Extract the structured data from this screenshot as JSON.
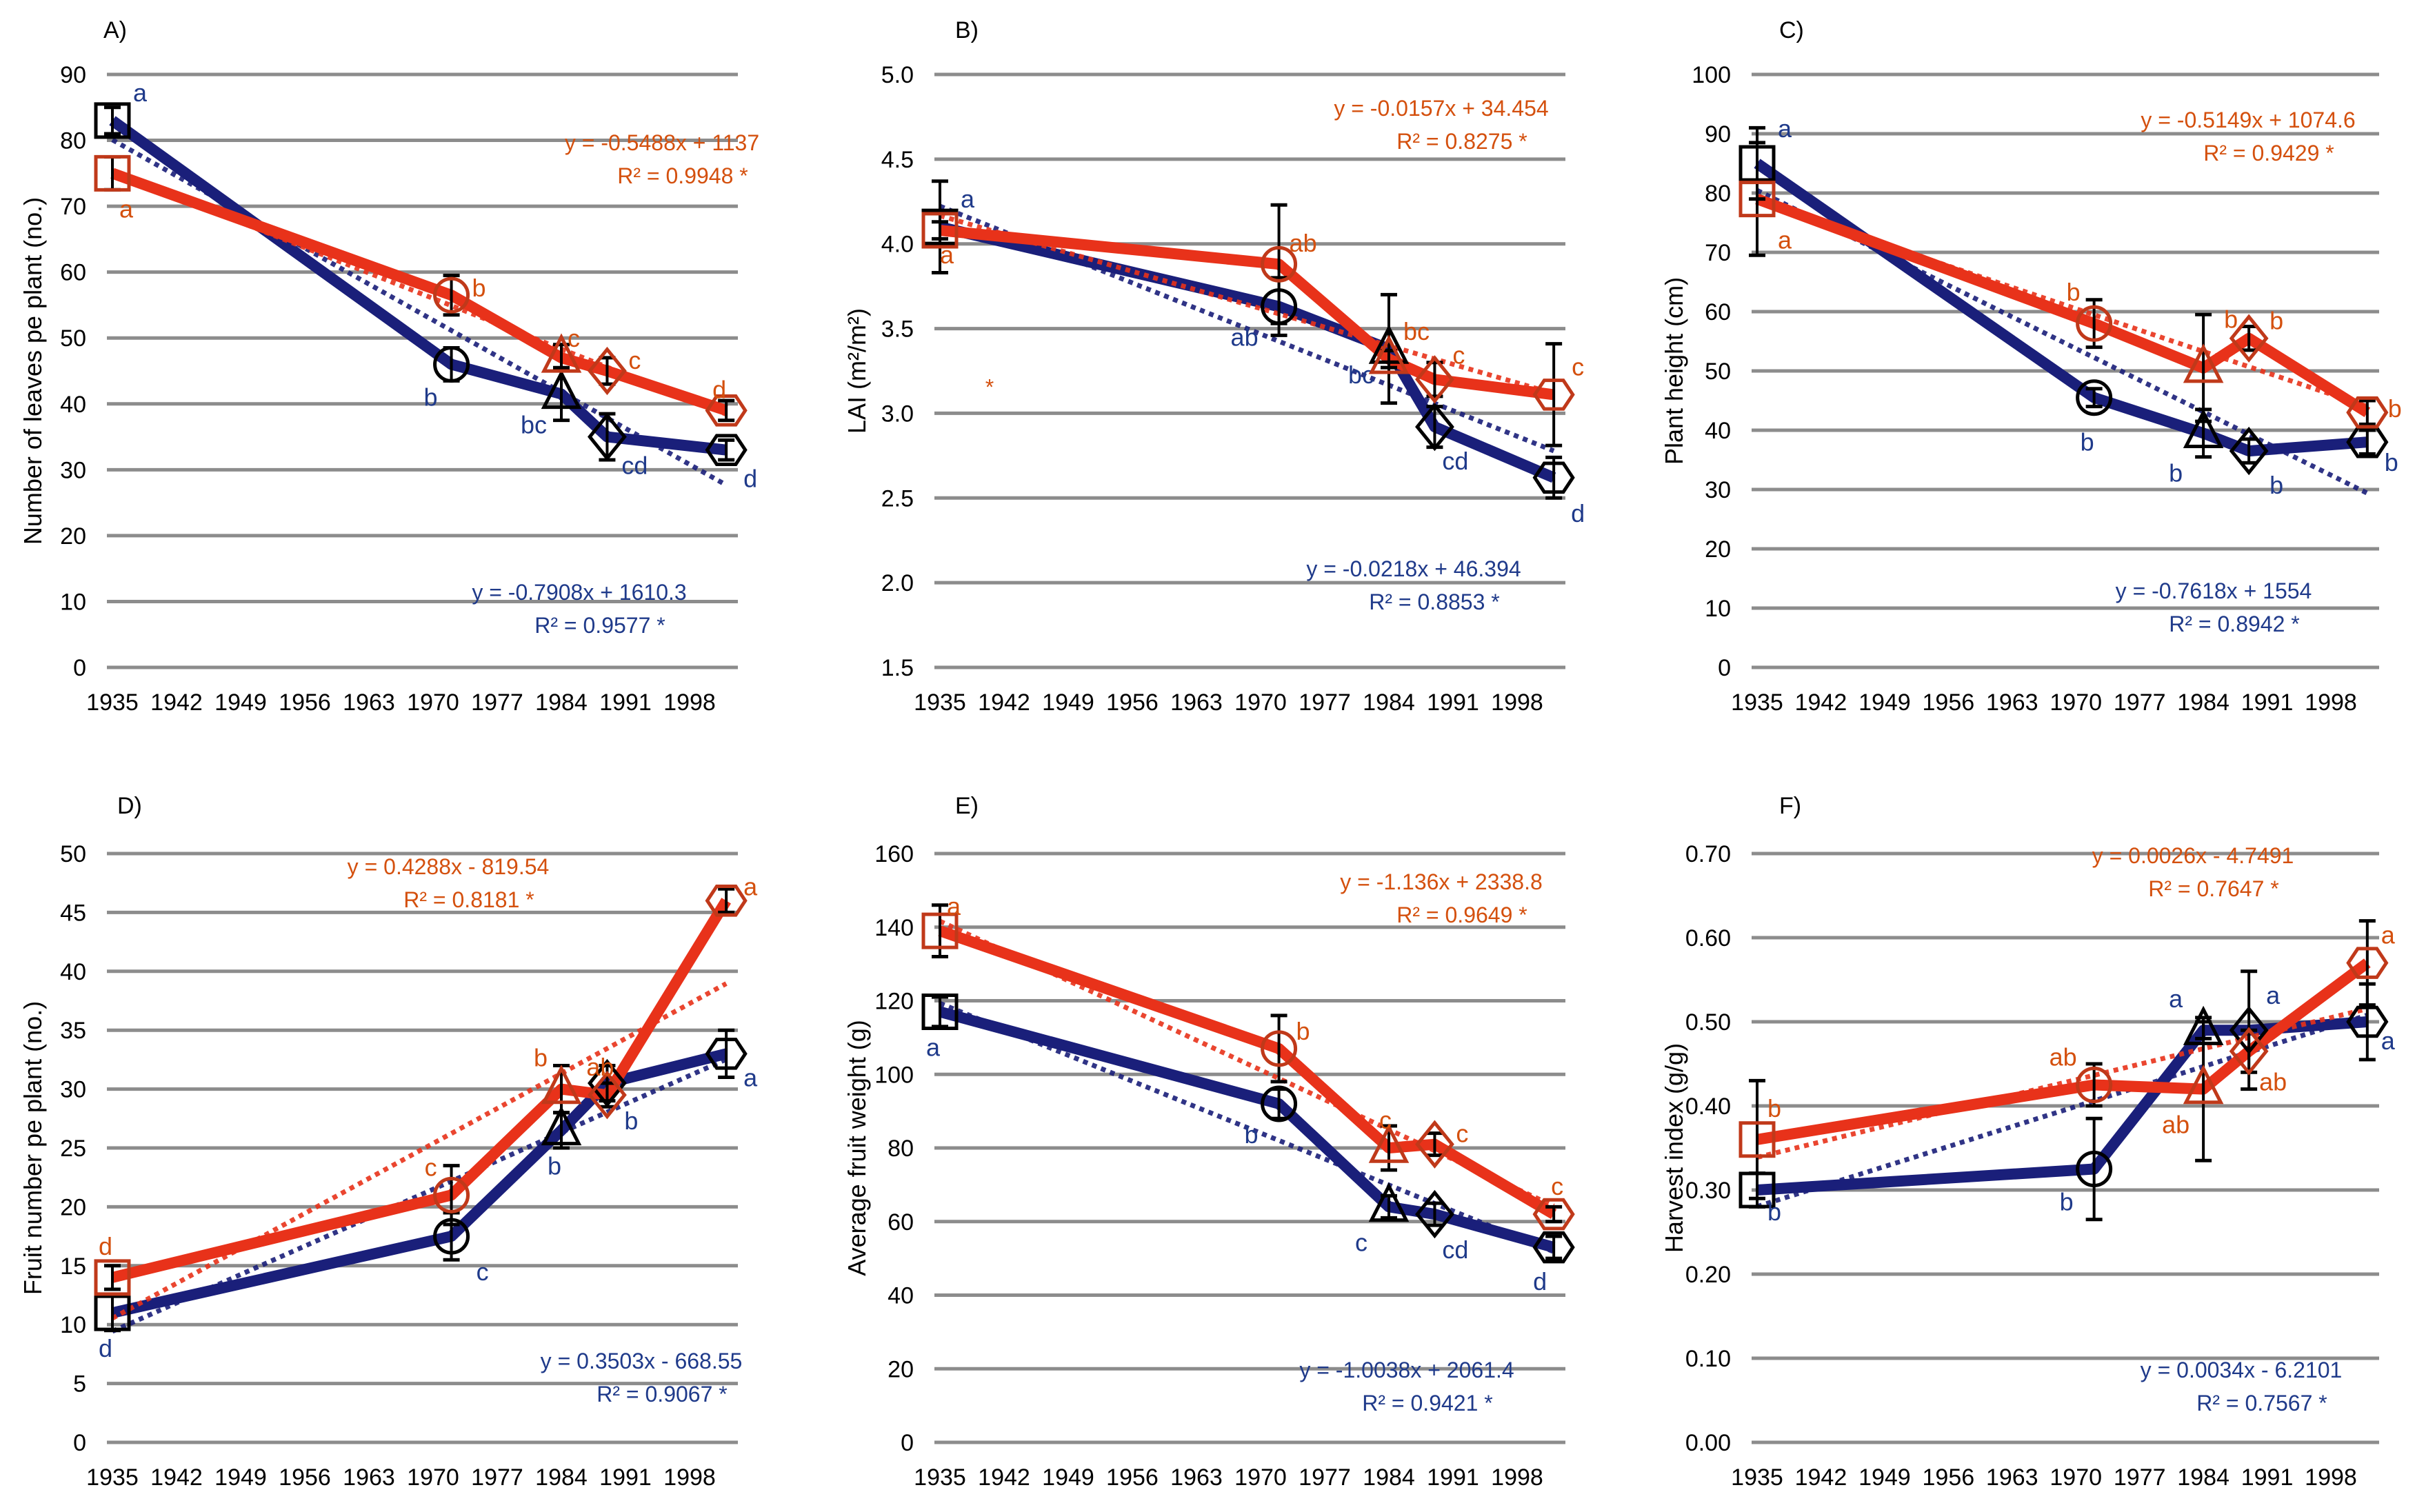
{
  "colors": {
    "series_2": "#e8321a",
    "series_2_marker": "#c0391a",
    "series_2_text": "#d4500e",
    "series_1": "#1a1f7a",
    "series_1_marker": "#000000",
    "series_1_text": "#1f3a8a",
    "errorbar": "#000000",
    "grid": "#8c8c8c"
  },
  "chart_data": [
    {
      "panel": "A)",
      "type": "line",
      "ylabel": "Number of leaves pe plant (no.)",
      "xlabel": "",
      "xticks": [
        "1935",
        "1942",
        "1949",
        "1956",
        "1963",
        "1970",
        "1977",
        "1984",
        "1991",
        "1998"
      ],
      "xlim": [
        1935,
        2002
      ],
      "ylim": [
        0,
        90
      ],
      "yticks": [
        "0",
        "10",
        "20",
        "30",
        "40",
        "50",
        "60",
        "70",
        "80",
        "90"
      ],
      "grid": true,
      "markers": [
        "square",
        "circle",
        "triangle",
        "diamond",
        "hexagon"
      ],
      "x": [
        1935,
        1972,
        1984,
        1989,
        2002
      ],
      "series": [
        {
          "name": "blue",
          "values": [
            83,
            46,
            41.5,
            35,
            33
          ],
          "errors": [
            2,
            2.5,
            4,
            3.5,
            1.5
          ],
          "letters": [
            "a",
            "b",
            "bc",
            "cd",
            "d"
          ],
          "trend": {
            "equation": "y = -0.7908x + 1610.3",
            "r2": "R² = 0.9577 *"
          }
        },
        {
          "name": "red",
          "values": [
            75,
            56.5,
            47,
            45,
            39
          ],
          "errors": [
            2.5,
            3,
            2,
            2,
            1.5
          ],
          "letters": [
            "a",
            "b",
            "c",
            "c",
            "d"
          ],
          "trend": {
            "equation": "y = -0.5488x + 1137",
            "r2": "R² = 0.9948 *"
          }
        }
      ]
    },
    {
      "panel": "B)",
      "type": "line",
      "ylabel": "LAI (m²/m²)",
      "xlabel": "",
      "xticks": [
        "1935",
        "1942",
        "1949",
        "1956",
        "1963",
        "1970",
        "1977",
        "1984",
        "1991",
        "1998"
      ],
      "xlim": [
        1935,
        2002
      ],
      "ylim": [
        1.5,
        5.0
      ],
      "yticks": [
        "1.5",
        "2.0",
        "2.5",
        "3.0",
        "3.5",
        "4.0",
        "4.5",
        "5.0"
      ],
      "grid": true,
      "markers": [
        "square",
        "circle",
        "triangle",
        "diamond",
        "hexagon"
      ],
      "x": [
        1935,
        1972,
        1984,
        1989,
        2002
      ],
      "series": [
        {
          "name": "blue",
          "values": [
            4.1,
            3.63,
            3.38,
            2.92,
            2.62
          ],
          "errors": [
            0.27,
            0.17,
            0.32,
            0.12,
            0.12
          ],
          "letters": [
            "a",
            "ab",
            "bc",
            "cd",
            "d"
          ],
          "trend": {
            "equation": "y = -0.0218x + 46.394",
            "r2": "R² = 0.8853 *"
          }
        },
        {
          "name": "red",
          "values": [
            4.08,
            3.88,
            3.32,
            3.2,
            3.11
          ],
          "errors": [
            0.05,
            0.35,
            0.05,
            0.1,
            0.3
          ],
          "letters": [
            "a",
            "ab",
            "bc",
            "c",
            "c"
          ],
          "trend": {
            "equation": "y = -0.0157x + 34.454",
            "r2": "R² = 0.8275 *"
          }
        }
      ],
      "annotations": [
        "*"
      ]
    },
    {
      "panel": "C)",
      "type": "line",
      "ylabel": "Plant height (cm)",
      "xlabel": "",
      "xticks": [
        "1935",
        "1942",
        "1949",
        "1956",
        "1963",
        "1970",
        "1977",
        "1984",
        "1991",
        "1998"
      ],
      "xlim": [
        1935,
        2002
      ],
      "ylim": [
        0,
        100
      ],
      "yticks": [
        "0",
        "10",
        "20",
        "30",
        "40",
        "50",
        "60",
        "70",
        "80",
        "90",
        "100"
      ],
      "grid": true,
      "markers": [
        "square",
        "circle",
        "triangle",
        "diamond",
        "hexagon"
      ],
      "x": [
        1935,
        1972,
        1984,
        1989,
        2002
      ],
      "series": [
        {
          "name": "blue",
          "values": [
            85,
            45.5,
            39.5,
            36.5,
            38
          ],
          "errors": [
            6,
            1.5,
            4,
            2,
            2
          ],
          "letters": [
            "a",
            "b",
            "b",
            "b",
            "b"
          ],
          "trend": {
            "equation": "y = -0.7618x + 1554",
            "r2": "R² = 0.8942 *"
          }
        },
        {
          "name": "red",
          "values": [
            79,
            58,
            50.5,
            55.5,
            43
          ],
          "errors": [
            9.5,
            4,
            9,
            2,
            2
          ],
          "letters": [
            "a",
            "b",
            "b",
            "b",
            "b"
          ],
          "trend": {
            "equation": "y = -0.5149x + 1074.6",
            "r2": "R² = 0.9429 *"
          }
        }
      ]
    },
    {
      "panel": "D)",
      "type": "line",
      "ylabel": "Fruit number pe plant (no.)",
      "xlabel": "",
      "xticks": [
        "1935",
        "1942",
        "1949",
        "1956",
        "1963",
        "1970",
        "1977",
        "1984",
        "1991",
        "1998"
      ],
      "xlim": [
        1935,
        2002
      ],
      "ylim": [
        0,
        50
      ],
      "yticks": [
        "0",
        "5",
        "10",
        "15",
        "20",
        "25",
        "30",
        "35",
        "40",
        "45",
        "50"
      ],
      "grid": true,
      "markers": [
        "square",
        "circle",
        "triangle",
        "diamond",
        "hexagon"
      ],
      "x": [
        1935,
        1972,
        1984,
        1989,
        2002
      ],
      "series": [
        {
          "name": "blue",
          "values": [
            11,
            17.5,
            26.5,
            30.5,
            33
          ],
          "errors": [
            1.5,
            2,
            1.5,
            1.5,
            2
          ],
          "letters": [
            "d",
            "c",
            "b",
            "b",
            "a"
          ],
          "trend": {
            "equation": "y = 0.3503x - 668.55",
            "r2": "R² = 0.9067 *"
          }
        },
        {
          "name": "red",
          "values": [
            14,
            21,
            30,
            29.5,
            46
          ],
          "errors": [
            1,
            2.5,
            2,
            1,
            1
          ],
          "letters": [
            "d",
            "c",
            "b",
            "ab",
            "a"
          ],
          "trend": {
            "equation": "y = 0.4288x - 819.54",
            "r2": "R² = 0.8181 *"
          }
        }
      ]
    },
    {
      "panel": "E)",
      "type": "line",
      "ylabel": "Average fruit weight (g)",
      "xlabel": "",
      "xticks": [
        "1935",
        "1942",
        "1949",
        "1956",
        "1963",
        "1970",
        "1977",
        "1984",
        "1991",
        "1998"
      ],
      "xlim": [
        1935,
        2002
      ],
      "ylim": [
        0,
        160
      ],
      "yticks": [
        "0",
        "20",
        "40",
        "60",
        "80",
        "100",
        "120",
        "140",
        "160"
      ],
      "grid": true,
      "markers": [
        "square",
        "circle",
        "triangle",
        "diamond",
        "hexagon"
      ],
      "x": [
        1935,
        1972,
        1984,
        1989,
        2002
      ],
      "series": [
        {
          "name": "blue",
          "values": [
            117,
            92,
            64,
            62,
            53
          ],
          "errors": [
            4,
            4,
            3,
            3,
            3
          ],
          "letters": [
            "a",
            "b",
            "c",
            "cd",
            "d"
          ],
          "trend": {
            "equation": "y = -1.0038x + 2061.4",
            "r2": "R² = 0.9421 *"
          }
        },
        {
          "name": "red",
          "values": [
            139,
            107,
            80,
            81,
            62
          ],
          "errors": [
            7,
            9,
            6,
            3,
            2
          ],
          "letters": [
            "a",
            "b",
            "c",
            "c",
            "c"
          ],
          "trend": {
            "equation": "y = -1.136x + 2338.8",
            "r2": "R² = 0.9649 *"
          }
        }
      ]
    },
    {
      "panel": "F)",
      "type": "line",
      "ylabel": "Harvest index (g/g)",
      "xlabel": "",
      "xticks": [
        "1935",
        "1942",
        "1949",
        "1956",
        "1963",
        "1970",
        "1977",
        "1984",
        "1991",
        "1998"
      ],
      "xlim": [
        1935,
        2002
      ],
      "ylim": [
        0,
        0.7
      ],
      "yticks": [
        "0.00",
        "0.10",
        "0.20",
        "0.30",
        "0.40",
        "0.50",
        "0.60",
        "0.70"
      ],
      "grid": true,
      "markers": [
        "square",
        "circle",
        "triangle",
        "diamond",
        "hexagon"
      ],
      "x": [
        1935,
        1972,
        1984,
        1989,
        2002
      ],
      "series": [
        {
          "name": "blue",
          "values": [
            0.3,
            0.325,
            0.49,
            0.49,
            0.5
          ],
          "errors": [
            0.02,
            0.06,
            0.01,
            0.07,
            0.045
          ],
          "letters": [
            "b",
            "b",
            "a",
            "a",
            "a"
          ],
          "trend": {
            "equation": "y = 0.0034x - 6.2101",
            "r2": "R² = 0.7567 *"
          }
        },
        {
          "name": "red",
          "values": [
            0.36,
            0.425,
            0.42,
            0.465,
            0.57
          ],
          "errors": [
            0.07,
            0.025,
            0.085,
            0.025,
            0.05
          ],
          "letters": [
            "b",
            "ab",
            "ab",
            "ab",
            "a"
          ],
          "trend": {
            "equation": "y = 0.0026x - 4.7491",
            "r2": "R² = 0.7647 *"
          }
        }
      ]
    }
  ]
}
